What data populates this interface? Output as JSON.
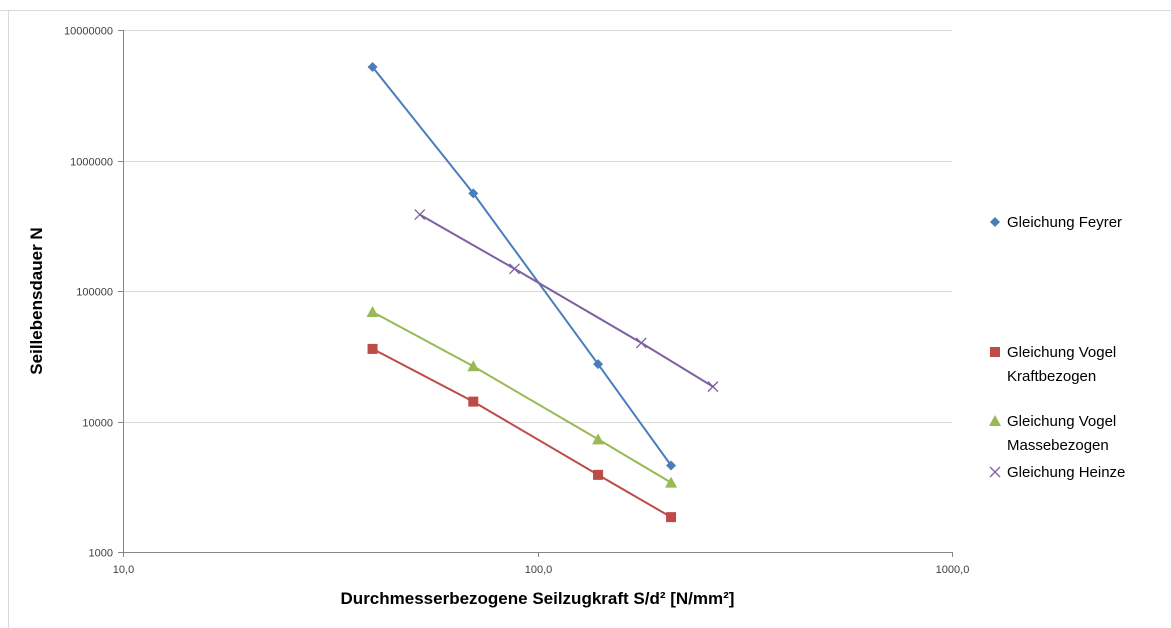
{
  "chart_data": {
    "type": "line",
    "xscale": "log",
    "yscale": "log",
    "xlabel": "Durchmesserbezogene Seilzugkraft S/d² [N/mm²]",
    "ylabel": "Seillebensdauer N",
    "xlim": [
      10,
      1000
    ],
    "ylim": [
      1000,
      10000000
    ],
    "xticks": [
      "10,0",
      "100,0",
      "1000,0"
    ],
    "yticks": [
      "1000",
      "10000",
      "100000",
      "1000000",
      "10000000"
    ],
    "grid": "horizontal",
    "legend_position": "right",
    "series": [
      {
        "name": "Gleichung Feyrer",
        "color": "#4a7ebb",
        "marker": "diamond",
        "x": [
          40,
          70,
          140,
          210
        ],
        "y": [
          5200000,
          560000,
          27500,
          4600
        ]
      },
      {
        "name": "Gleichung Vogel Kraftbezogen",
        "color": "#be4b48",
        "marker": "square",
        "x": [
          40,
          70,
          140,
          210
        ],
        "y": [
          36000,
          14200,
          3900,
          1850
        ]
      },
      {
        "name": "Gleichung Vogel Massebezogen",
        "color": "#98b954",
        "marker": "triangle",
        "x": [
          40,
          70,
          140,
          210
        ],
        "y": [
          69000,
          26500,
          7300,
          3400
        ]
      },
      {
        "name": "Gleichung Heinze",
        "color": "#7d60a0",
        "marker": "x",
        "x": [
          52,
          88,
          178,
          265
        ],
        "y": [
          385000,
          148000,
          40000,
          18500
        ]
      }
    ]
  }
}
